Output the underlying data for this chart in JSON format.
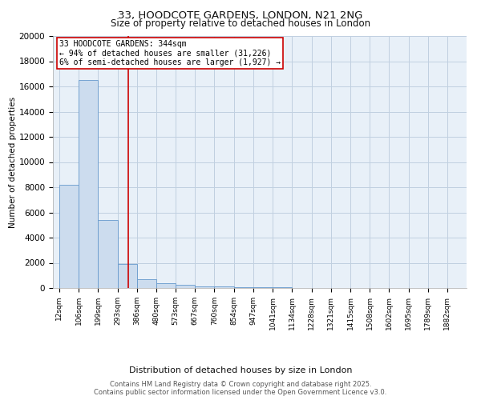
{
  "title": "33, HOODCOTE GARDENS, LONDON, N21 2NG",
  "subtitle": "Size of property relative to detached houses in London",
  "xlabel": "Distribution of detached houses by size in London",
  "ylabel": "Number of detached properties",
  "bin_edges": [
    12,
    106,
    199,
    293,
    386,
    480,
    573,
    667,
    760,
    854,
    947,
    1041,
    1134,
    1228,
    1321,
    1415,
    1508,
    1602,
    1695,
    1789,
    1882
  ],
  "bar_heights": [
    8200,
    16500,
    5400,
    1900,
    700,
    350,
    250,
    150,
    100,
    80,
    60,
    40,
    30,
    25,
    20,
    15,
    12,
    10,
    8,
    6
  ],
  "bar_color": "#ccdcee",
  "bar_edgecolor": "#6699cc",
  "bar_linewidth": 0.6,
  "ylim": [
    0,
    20000
  ],
  "red_line_x": 344,
  "red_line_color": "#cc0000",
  "annotation_text": "33 HOODCOTE GARDENS: 344sqm\n← 94% of detached houses are smaller (31,226)\n6% of semi-detached houses are larger (1,927) →",
  "annotation_box_edgecolor": "#cc0000",
  "annotation_box_facecolor": "#ffffff",
  "footer_line1": "Contains HM Land Registry data © Crown copyright and database right 2025.",
  "footer_line2": "Contains public sector information licensed under the Open Government Licence v3.0.",
  "bg_color": "#ffffff",
  "plot_bg_color": "#e8f0f8",
  "grid_color": "#c0d0e0",
  "title_fontsize": 9.5,
  "subtitle_fontsize": 8.5,
  "tick_label_fontsize": 6.5,
  "ylabel_fontsize": 7.5,
  "xlabel_fontsize": 8,
  "footer_fontsize": 6,
  "annotation_fontsize": 7
}
